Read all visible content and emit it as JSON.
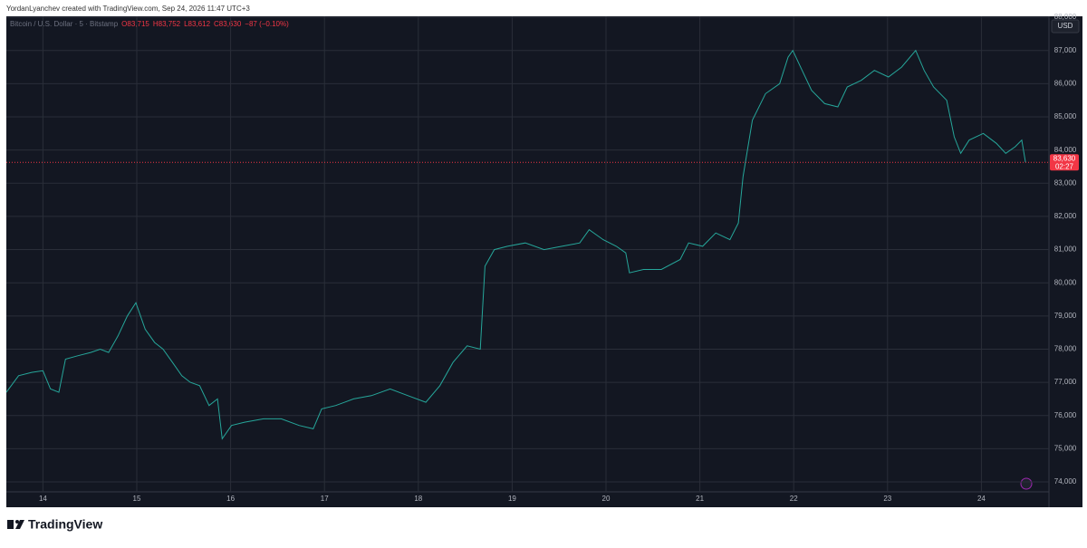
{
  "chart_data": {
    "type": "line",
    "attribution": "YordanLyanchev created with TradingView.com, Sep 24, 2026 11:47 UTC+3",
    "legend": {
      "symbol": "Bitcoin / U.S. Dollar · 5 · Bitstamp",
      "ohlc": [
        "O83,715",
        "H83,752",
        "L83,612",
        "C83,630"
      ],
      "change": "−87 (−0.10%)"
    },
    "currency": "USD",
    "price_label": "83,630",
    "countdown": "02:27",
    "brand": "TradingView",
    "series": [
      {
        "name": "BTCUSD",
        "color": "#26a69a",
        "x": [
          13.61,
          13.74,
          13.88,
          14.0,
          14.08,
          14.17,
          14.24,
          14.37,
          14.51,
          14.61,
          14.7,
          14.8,
          14.9,
          14.99,
          15.09,
          15.19,
          15.28,
          15.38,
          15.48,
          15.57,
          15.67,
          15.77,
          15.86,
          15.91,
          16.01,
          16.15,
          16.35,
          16.54,
          16.73,
          16.88,
          16.97,
          17.12,
          17.31,
          17.5,
          17.7,
          17.89,
          18.08,
          18.23,
          18.37,
          18.52,
          18.66,
          18.71,
          18.81,
          18.95,
          19.14,
          19.34,
          19.53,
          19.72,
          19.82,
          19.97,
          20.11,
          20.21,
          20.25,
          20.4,
          20.59,
          20.79,
          20.88,
          21.03,
          21.17,
          21.32,
          21.41,
          21.46,
          21.56,
          21.7,
          21.85,
          21.94,
          21.99,
          22.09,
          22.19,
          22.33,
          22.47,
          22.57,
          22.72,
          22.86,
          23.01,
          23.15,
          23.3,
          23.39,
          23.49,
          23.63,
          23.71,
          23.78,
          23.87,
          24.02,
          24.16,
          24.26,
          24.36,
          24.43,
          24.47
        ],
        "values": [
          76700,
          77200,
          77300,
          77350,
          76800,
          76700,
          77700,
          77800,
          77900,
          78000,
          77900,
          78400,
          79000,
          79400,
          78600,
          78200,
          78000,
          77600,
          77200,
          77000,
          76900,
          76300,
          76500,
          75300,
          75700,
          75800,
          75900,
          75900,
          75700,
          75600,
          76200,
          76300,
          76500,
          76600,
          76800,
          76600,
          76400,
          76900,
          77600,
          78100,
          78000,
          80500,
          81000,
          81100,
          81200,
          81000,
          81100,
          81200,
          81600,
          81300,
          81100,
          80900,
          80300,
          80400,
          80400,
          80700,
          81200,
          81100,
          81500,
          81300,
          81800,
          83200,
          84900,
          85700,
          86000,
          86800,
          87000,
          86400,
          85800,
          85400,
          85300,
          85900,
          86100,
          86400,
          86200,
          86500,
          87000,
          86400,
          85900,
          85500,
          84400,
          83900,
          84300,
          84500,
          84200,
          83900,
          84100,
          84300,
          83630
        ]
      }
    ],
    "xlim": [
      13.61,
      24.72
    ],
    "xticks": [
      14,
      15,
      16,
      17,
      18,
      19,
      20,
      21,
      22,
      23,
      24
    ],
    "ylim": [
      73700,
      88030
    ],
    "yticks": [
      {
        "value": 74000,
        "label": "74,000"
      },
      {
        "value": 75000,
        "label": "75,000"
      },
      {
        "value": 76000,
        "label": "76,000"
      },
      {
        "value": 77000,
        "label": "77,000"
      },
      {
        "value": 78000,
        "label": "78,000"
      },
      {
        "value": 79000,
        "label": "79,000"
      },
      {
        "value": 80000,
        "label": "80,000"
      },
      {
        "value": 81000,
        "label": "81,000"
      },
      {
        "value": 82000,
        "label": "82,000"
      },
      {
        "value": 83000,
        "label": "83,000"
      },
      {
        "value": 84000,
        "label": "84,000"
      },
      {
        "value": 85000,
        "label": "85,000"
      },
      {
        "value": 86000,
        "label": "86,000"
      },
      {
        "value": 87000,
        "label": "87,000"
      },
      {
        "value": 88000,
        "label": "88,000"
      }
    ],
    "grid": true,
    "last_line_color": "#f23645"
  }
}
